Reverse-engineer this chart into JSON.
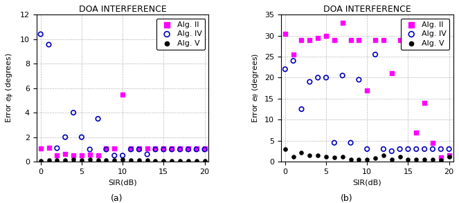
{
  "title": "DOA INTERFERENCE",
  "subplot_a": {
    "ylabel": "Error $e_{\\phi}$ (degrees)",
    "xlabel": "SIR(dB)",
    "label": "(a)",
    "ylim": [
      0,
      12
    ],
    "yticks": [
      0,
      2,
      4,
      6,
      8,
      10,
      12
    ],
    "xlim": [
      -0.5,
      20.5
    ],
    "xticks": [
      0,
      5,
      10,
      15,
      20
    ],
    "alg_II_x": [
      0,
      1,
      2,
      3,
      4,
      5,
      6,
      7,
      8,
      9,
      10,
      11,
      12,
      13,
      14,
      15,
      16,
      17,
      18,
      19,
      20
    ],
    "alg_II_y": [
      1.1,
      1.15,
      0.5,
      0.6,
      0.5,
      0.5,
      0.55,
      0.5,
      1.1,
      1.1,
      5.5,
      1.1,
      1.1,
      1.1,
      1.1,
      1.1,
      1.1,
      1.1,
      1.1,
      1.1,
      1.1
    ],
    "alg_IV_x": [
      0,
      1,
      2,
      3,
      4,
      5,
      6,
      7,
      8,
      9,
      10,
      11,
      12,
      13,
      14,
      15,
      16,
      17,
      18,
      19,
      20
    ],
    "alg_IV_y": [
      10.4,
      9.55,
      1.1,
      2.0,
      4.0,
      2.0,
      1.0,
      3.5,
      1.0,
      0.5,
      0.5,
      1.0,
      1.0,
      0.6,
      1.0,
      1.0,
      1.0,
      1.0,
      1.0,
      1.0,
      1.0
    ],
    "alg_V_x": [
      0,
      1,
      2,
      3,
      4,
      5,
      6,
      7,
      8,
      9,
      10,
      11,
      12,
      13,
      14,
      15,
      16,
      17,
      18,
      19,
      20
    ],
    "alg_V_y": [
      0.05,
      0.1,
      0.1,
      0.1,
      0.15,
      0.1,
      0.15,
      0.1,
      0.1,
      0.1,
      0.15,
      0.1,
      0.1,
      0.1,
      0.05,
      0.05,
      0.05,
      0.05,
      0.05,
      0.05,
      0.05
    ]
  },
  "subplot_b": {
    "ylabel": "Error $e_{\\theta}$ (degrees)",
    "xlabel": "SIR(dB)",
    "label": "(b)",
    "ylim": [
      0,
      35
    ],
    "yticks": [
      0,
      5,
      10,
      15,
      20,
      25,
      30,
      35
    ],
    "xlim": [
      -0.5,
      20.5
    ],
    "xticks": [
      0,
      5,
      10,
      15,
      20
    ],
    "alg_II_x": [
      0,
      1,
      2,
      3,
      4,
      5,
      6,
      7,
      8,
      9,
      10,
      11,
      12,
      13,
      14,
      15,
      16,
      17,
      18,
      19,
      20
    ],
    "alg_II_y": [
      30.5,
      25.5,
      29.0,
      29.0,
      29.5,
      30.0,
      29.0,
      33.0,
      29.0,
      29.0,
      17.0,
      29.0,
      29.0,
      21.0,
      29.0,
      29.0,
      7.0,
      14.0,
      4.5,
      1.0,
      1.5
    ],
    "alg_IV_x": [
      0,
      1,
      2,
      3,
      4,
      5,
      6,
      7,
      8,
      9,
      10,
      11,
      12,
      13,
      14,
      15,
      16,
      17,
      18,
      19,
      20
    ],
    "alg_IV_y": [
      22.0,
      24.0,
      12.5,
      19.0,
      20.0,
      20.0,
      4.5,
      20.5,
      4.5,
      19.5,
      3.0,
      25.5,
      3.0,
      2.5,
      3.0,
      3.0,
      3.0,
      3.0,
      3.0,
      3.0,
      3.0
    ],
    "alg_V_x": [
      0,
      1,
      2,
      3,
      4,
      5,
      6,
      7,
      8,
      9,
      10,
      11,
      12,
      13,
      14,
      15,
      16,
      17,
      18,
      19,
      20
    ],
    "alg_V_y": [
      3.0,
      1.2,
      2.2,
      1.5,
      1.5,
      1.2,
      1.0,
      1.2,
      0.5,
      0.5,
      0.5,
      0.8,
      1.5,
      0.5,
      1.2,
      0.5,
      0.5,
      0.5,
      0.5,
      0.3,
      1.2
    ]
  },
  "colors": {
    "alg_II": "#FF00FF",
    "alg_IV": "#0000BB",
    "alg_V": "#000000"
  },
  "legend_labels": [
    "Alg. II",
    "Alg. IV",
    "Alg. V"
  ],
  "bg_color": "#FFFFFF",
  "grid_color": "#999999",
  "title_fontsize": 9,
  "label_fontsize": 8,
  "tick_fontsize": 8,
  "legend_fontsize": 8,
  "marker_size_sq": 18,
  "marker_size_circle": 22,
  "marker_size_dot": 14
}
